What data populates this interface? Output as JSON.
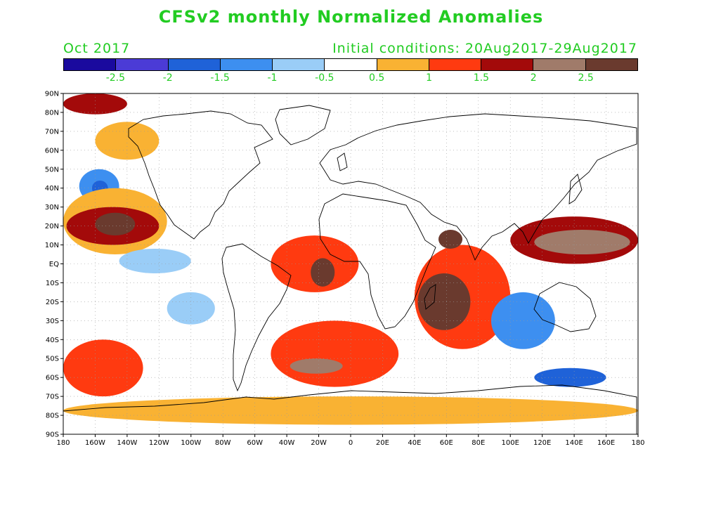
{
  "title": "CFSv2 monthly Normalized Anomalies",
  "month": "Oct 2017",
  "initial_conditions": "Initial conditions: 20Aug2017-29Aug2017",
  "colorbar": {
    "colors": [
      "#1a0a9e",
      "#4b3bd6",
      "#1f62d8",
      "#3d8ff0",
      "#9acdf7",
      "#ffffff",
      "#f9b233",
      "#ff3a10",
      "#a30a0a",
      "#a07b6a",
      "#6a3a2e"
    ],
    "labels": [
      "-2.5",
      "-2",
      "-1.5",
      "-1",
      "-0.5",
      "0.5",
      "1",
      "1.5",
      "2",
      "2.5"
    ]
  },
  "map": {
    "projection": "equirectangular",
    "lon_range": [
      -180,
      180
    ],
    "lat_range": [
      -90,
      90
    ],
    "lat_ticks": [
      "90N",
      "80N",
      "70N",
      "60N",
      "50N",
      "40N",
      "30N",
      "20N",
      "10N",
      "EQ",
      "10S",
      "20S",
      "30S",
      "40S",
      "50S",
      "60S",
      "70S",
      "80S",
      "90S"
    ],
    "lon_ticks": [
      "180",
      "160W",
      "140W",
      "120W",
      "100W",
      "80W",
      "60W",
      "40W",
      "20W",
      "0",
      "20E",
      "40E",
      "60E",
      "80E",
      "100E",
      "120E",
      "140E",
      "160E",
      "180"
    ],
    "anomaly_regions": [
      {
        "name": "Arctic band",
        "lon": [
          -180,
          -140
        ],
        "lat": [
          79,
          90
        ],
        "value": 1.5
      },
      {
        "name": "NE Pacific north",
        "lon": [
          -160,
          -120
        ],
        "lat": [
          55,
          75
        ],
        "value": 0.7
      },
      {
        "name": "N Pacific cool",
        "lon": [
          -170,
          -145
        ],
        "lat": [
          32,
          50
        ],
        "value": -1.2
      },
      {
        "name": "N Pacific cool core",
        "lon": [
          -162,
          -152
        ],
        "lat": [
          36,
          44
        ],
        "value": -1.6
      },
      {
        "name": "Subtropical E Pacific warm",
        "lon": [
          -180,
          -115
        ],
        "lat": [
          5,
          40
        ],
        "value": 0.8
      },
      {
        "name": "Subtropical E Pacific red",
        "lon": [
          -178,
          -120
        ],
        "lat": [
          10,
          30
        ],
        "value": 1.6
      },
      {
        "name": "Subtropical E Pacific core",
        "lon": [
          -160,
          -135
        ],
        "lat": [
          15,
          27
        ],
        "value": 2.6
      },
      {
        "name": "Tropical Pacific cool",
        "lon": [
          -145,
          -100
        ],
        "lat": [
          -5,
          8
        ],
        "value": -0.8
      },
      {
        "name": "S Pacific cool",
        "lon": [
          -115,
          -85
        ],
        "lat": [
          -32,
          -15
        ],
        "value": -0.8
      },
      {
        "name": "Tropical Atlantic warm",
        "lon": [
          -50,
          5
        ],
        "lat": [
          -15,
          15
        ],
        "value": 1.0
      },
      {
        "name": "Tropical Atlantic core",
        "lon": [
          -25,
          -10
        ],
        "lat": [
          -12,
          3
        ],
        "value": 2.5
      },
      {
        "name": "Indian Ocean warm",
        "lon": [
          40,
          100
        ],
        "lat": [
          -45,
          10
        ],
        "value": 1.2
      },
      {
        "name": "Indian Ocean core",
        "lon": [
          42,
          75
        ],
        "lat": [
          -35,
          -5
        ],
        "value": 2.6
      },
      {
        "name": "Arabian Sea core",
        "lon": [
          55,
          70
        ],
        "lat": [
          8,
          18
        ],
        "value": 2.5
      },
      {
        "name": "W Pacific warm",
        "lon": [
          100,
          180
        ],
        "lat": [
          0,
          25
        ],
        "value": 1.5
      },
      {
        "name": "W Pacific core",
        "lon": [
          115,
          175
        ],
        "lat": [
          5,
          18
        ],
        "value": 2.4
      },
      {
        "name": "SE Indian cool",
        "lon": [
          88,
          128
        ],
        "lat": [
          -45,
          -15
        ],
        "value": -1.3
      },
      {
        "name": "S Atlantic warm",
        "lon": [
          -50,
          30
        ],
        "lat": [
          -65,
          -30
        ],
        "value": 1.3
      },
      {
        "name": "S Atlantic core",
        "lon": [
          -38,
          -5
        ],
        "lat": [
          -58,
          -50
        ],
        "value": 2.3
      },
      {
        "name": "Southern Ocean cool",
        "lon": [
          115,
          160
        ],
        "lat": [
          -65,
          -55
        ],
        "value": -1.9
      },
      {
        "name": "Southern Ocean warm",
        "lon": [
          -180,
          -130
        ],
        "lat": [
          -70,
          -40
        ],
        "value": 1.4
      },
      {
        "name": "Antarctic coast warm",
        "lon": [
          -180,
          180
        ],
        "lat": [
          -85,
          -70
        ],
        "value": 0.6
      }
    ]
  }
}
